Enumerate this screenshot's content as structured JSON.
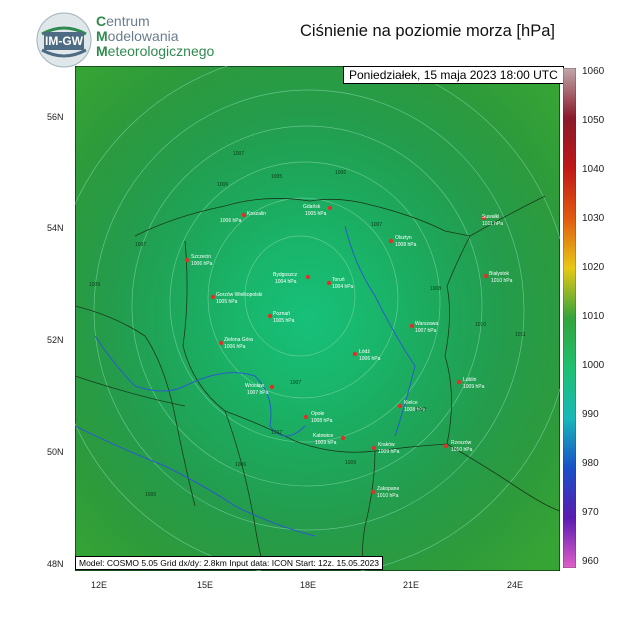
{
  "org": {
    "logo_text": "IM\nGW",
    "line1_cap": "C",
    "line1": "entrum",
    "line2_cap": "M",
    "line2": "odelowania",
    "line3_cap": "M",
    "line3": "eteorologicznego"
  },
  "title": "Ciśnienie na poziomie morza [hPa]",
  "date_label": "Poniedziałek, 15 maja 2023 18:00 UTC",
  "model_info": "Model: COSMO 5.05  Grid dx/dy: 2.8km  Input data: ICON  Start: 12z. 15.05.2023",
  "lat_labels": [
    "56N",
    "54N",
    "52N",
    "50N",
    "48N"
  ],
  "lon_labels": [
    "12E",
    "15E",
    "18E",
    "21E",
    "24E"
  ],
  "colorbar": {
    "labels": [
      "1060",
      "1050",
      "1040",
      "1030",
      "1020",
      "1010",
      "1000",
      "990",
      "980",
      "970",
      "960"
    ],
    "colors": [
      "#b89ca0",
      "#8a1a2a",
      "#c01818",
      "#e05a10",
      "#e8c814",
      "#34a43c",
      "#1ec070",
      "#18b8b8",
      "#1850c8",
      "#5a1cb0",
      "#e060c8"
    ]
  },
  "cities": [
    {
      "name": "Gdańsk",
      "value": "1005 hPa"
    },
    {
      "name": "Koszalin",
      "value": "1006 hPa"
    },
    {
      "name": "Suwałki",
      "value": "1011 hPa"
    },
    {
      "name": "Olsztyn",
      "value": "1008 hPa"
    },
    {
      "name": "Szczecin",
      "value": "1006 hPa"
    },
    {
      "name": "Białystok",
      "value": "1010 hPa"
    },
    {
      "name": "Bydgoszcz",
      "value": "1004 hPa"
    },
    {
      "name": "Toruń",
      "value": "1004 hPa"
    },
    {
      "name": "Gorzów Wielkopolski",
      "value": "1005 hPa"
    },
    {
      "name": "Poznań",
      "value": "1005 hPa"
    },
    {
      "name": "Warszawa",
      "value": "1007 hPa"
    },
    {
      "name": "Zielona Góra",
      "value": "1006 hPa"
    },
    {
      "name": "Łódź",
      "value": "1006 hPa"
    },
    {
      "name": "Lublin",
      "value": "1009 hPa"
    },
    {
      "name": "Wrocław",
      "value": "1007 hPa"
    },
    {
      "name": "Opole",
      "value": "1008 hPa"
    },
    {
      "name": "Kielce",
      "value": "1008 hPa"
    },
    {
      "name": "Katowice",
      "value": "1009 hPa"
    },
    {
      "name": "Kraków",
      "value": "1009 hPa"
    },
    {
      "name": "Rzeszów",
      "value": "1010 hPa"
    },
    {
      "name": "Zakopane",
      "value": "1010 hPa"
    }
  ],
  "isobar_labels": [
    "1005",
    "1006",
    "1007",
    "1008",
    "1009",
    "1010",
    "1011"
  ]
}
